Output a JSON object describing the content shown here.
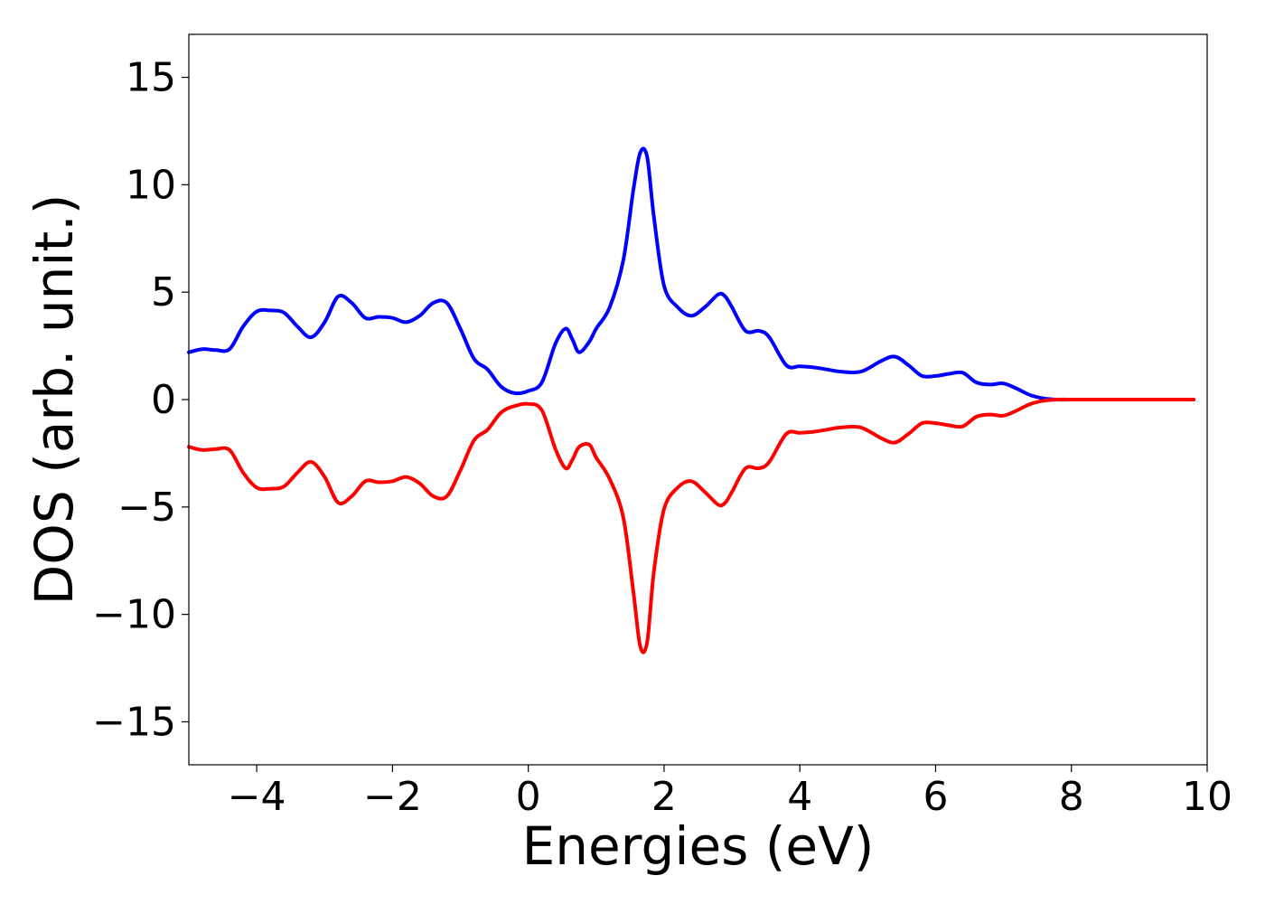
{
  "chart_data": {
    "type": "line",
    "title": "",
    "xlabel": "Energies (eV)",
    "ylabel": "DOS (arb. unit.)",
    "xlim": [
      -5,
      10
    ],
    "ylim": [
      -17,
      17
    ],
    "xticks": [
      -4,
      -2,
      0,
      2,
      4,
      6,
      8,
      10
    ],
    "xtick_labels": [
      "−4",
      "−2",
      "0",
      "2",
      "4",
      "6",
      "8",
      "10"
    ],
    "yticks": [
      15,
      10,
      5,
      0,
      -5,
      -10,
      -15
    ],
    "ytick_labels": [
      "15",
      "10",
      "5",
      "0",
      "−5",
      "−10",
      "−15"
    ],
    "grid": false,
    "legend": "none",
    "series": [
      {
        "color": "#0000ff",
        "x": [
          -5.0,
          -4.8,
          -4.6,
          -4.4,
          -4.2,
          -4.0,
          -3.8,
          -3.6,
          -3.4,
          -3.2,
          -3.0,
          -2.8,
          -2.6,
          -2.4,
          -2.2,
          -2.0,
          -1.8,
          -1.6,
          -1.4,
          -1.2,
          -1.0,
          -0.8,
          -0.6,
          -0.4,
          -0.2,
          0.0,
          0.2,
          0.4,
          0.55,
          0.65,
          0.75,
          0.9,
          1.0,
          1.2,
          1.4,
          1.55,
          1.65,
          1.75,
          1.85,
          2.0,
          2.2,
          2.4,
          2.6,
          2.8,
          2.9,
          3.0,
          3.2,
          3.4,
          3.55,
          3.8,
          4.0,
          4.2,
          4.4,
          4.6,
          4.9,
          5.2,
          5.4,
          5.6,
          5.8,
          6.0,
          6.2,
          6.4,
          6.6,
          6.8,
          7.0,
          7.2,
          7.4,
          7.6,
          7.8,
          8.0,
          9.0,
          9.8
        ],
        "y": [
          2.2,
          2.35,
          2.3,
          2.35,
          3.4,
          4.1,
          4.15,
          4.05,
          3.4,
          2.9,
          3.6,
          4.8,
          4.5,
          3.8,
          3.85,
          3.8,
          3.6,
          3.9,
          4.5,
          4.5,
          3.3,
          1.9,
          1.4,
          0.6,
          0.3,
          0.4,
          0.8,
          2.6,
          3.3,
          2.8,
          2.2,
          2.7,
          3.3,
          4.3,
          6.5,
          9.8,
          11.5,
          11.3,
          8.5,
          5.3,
          4.3,
          3.9,
          4.3,
          4.9,
          4.8,
          4.3,
          3.2,
          3.2,
          2.9,
          1.6,
          1.55,
          1.5,
          1.4,
          1.3,
          1.3,
          1.8,
          2.0,
          1.6,
          1.1,
          1.1,
          1.2,
          1.25,
          0.8,
          0.7,
          0.75,
          0.5,
          0.2,
          0.05,
          0.0,
          0.0,
          0.0,
          0.0
        ]
      },
      {
        "color": "#ff0000",
        "x": [
          -5.0,
          -4.8,
          -4.6,
          -4.4,
          -4.2,
          -4.0,
          -3.8,
          -3.6,
          -3.4,
          -3.2,
          -3.0,
          -2.8,
          -2.6,
          -2.4,
          -2.2,
          -2.0,
          -1.8,
          -1.6,
          -1.4,
          -1.2,
          -1.0,
          -0.8,
          -0.6,
          -0.4,
          -0.2,
          0.0,
          0.2,
          0.4,
          0.55,
          0.65,
          0.75,
          0.9,
          1.0,
          1.2,
          1.4,
          1.55,
          1.65,
          1.75,
          1.85,
          2.0,
          2.2,
          2.4,
          2.6,
          2.8,
          2.9,
          3.0,
          3.2,
          3.4,
          3.55,
          3.8,
          4.0,
          4.2,
          4.4,
          4.6,
          4.9,
          5.2,
          5.4,
          5.6,
          5.8,
          6.0,
          6.2,
          6.4,
          6.6,
          6.8,
          7.0,
          7.2,
          7.4,
          7.6,
          7.8,
          8.0,
          9.0,
          9.8
        ],
        "y": [
          -2.2,
          -2.35,
          -2.3,
          -2.35,
          -3.4,
          -4.1,
          -4.15,
          -4.05,
          -3.4,
          -2.9,
          -3.6,
          -4.8,
          -4.5,
          -3.8,
          -3.85,
          -3.8,
          -3.6,
          -3.9,
          -4.5,
          -4.5,
          -3.3,
          -1.9,
          -1.4,
          -0.6,
          -0.3,
          -0.2,
          -0.5,
          -2.3,
          -3.2,
          -2.8,
          -2.2,
          -2.1,
          -2.7,
          -3.7,
          -5.5,
          -9.0,
          -11.5,
          -11.3,
          -8.0,
          -5.1,
          -4.1,
          -3.8,
          -4.3,
          -4.9,
          -4.8,
          -4.3,
          -3.2,
          -3.2,
          -2.9,
          -1.6,
          -1.55,
          -1.5,
          -1.4,
          -1.3,
          -1.3,
          -1.8,
          -2.0,
          -1.6,
          -1.1,
          -1.1,
          -1.2,
          -1.25,
          -0.8,
          -0.7,
          -0.75,
          -0.5,
          -0.2,
          -0.05,
          0.0,
          0.0,
          0.0,
          0.0
        ]
      }
    ]
  }
}
